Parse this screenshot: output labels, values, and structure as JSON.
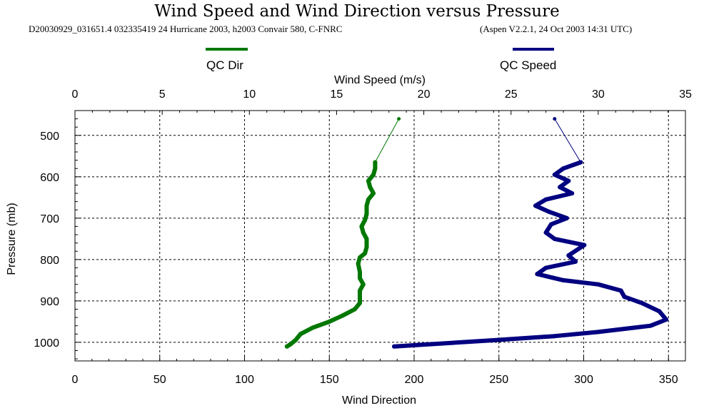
{
  "title": "Wind Speed and Wind Direction versus Pressure",
  "subtitle_left": "D20030929_031651.4 032335419 24 Hurricane 2003, h2003 Convair 580, C-FNRC",
  "subtitle_right": "(Aspen V2.2.1, 24 Oct 2003  14:31 UTC)",
  "colors": {
    "dir": "#007800",
    "speed": "#000080",
    "grid": "#000000"
  },
  "chart_data": {
    "type": "line",
    "title": "Wind Speed and Wind Direction versus Pressure",
    "ylabel": "Pressure (mb)",
    "ylim": [
      440,
      1045
    ],
    "yticks": [
      500,
      600,
      700,
      800,
      900,
      1000
    ],
    "x_top_label": "Wind Speed (m/s)",
    "x_top_lim": [
      0,
      35
    ],
    "x_top_ticks": [
      0,
      5,
      10,
      15,
      20,
      25,
      30,
      35
    ],
    "x_bottom_label": "Wind Direction",
    "x_bottom_lim": [
      0,
      360
    ],
    "x_bottom_ticks": [
      0,
      50,
      100,
      150,
      200,
      250,
      300,
      350
    ],
    "legend": [
      {
        "label": "QC Dir",
        "color": "#007800"
      },
      {
        "label": "QC Speed",
        "color": "#000080"
      }
    ],
    "series": [
      {
        "name": "QC Dir",
        "axis": "bottom",
        "points": [
          [
            191,
            460
          ],
          [
            177,
            565
          ],
          [
            177,
            580
          ],
          [
            176,
            595
          ],
          [
            173,
            610
          ],
          [
            174,
            625
          ],
          [
            176,
            640
          ],
          [
            173,
            655
          ],
          [
            172,
            670
          ],
          [
            172,
            690
          ],
          [
            171,
            705
          ],
          [
            169,
            720
          ],
          [
            170,
            735
          ],
          [
            172,
            750
          ],
          [
            172,
            770
          ],
          [
            171,
            785
          ],
          [
            168,
            795
          ],
          [
            167,
            810
          ],
          [
            168,
            830
          ],
          [
            168,
            845
          ],
          [
            170,
            860
          ],
          [
            168,
            875
          ],
          [
            168,
            890
          ],
          [
            168,
            905
          ],
          [
            165,
            920
          ],
          [
            158,
            935
          ],
          [
            150,
            950
          ],
          [
            140,
            965
          ],
          [
            133,
            980
          ],
          [
            130,
            995
          ],
          [
            127,
            1005
          ],
          [
            125,
            1010
          ]
        ]
      },
      {
        "name": "QC Speed",
        "axis": "top",
        "points": [
          [
            27.5,
            460
          ],
          [
            29.0,
            565
          ],
          [
            28.0,
            580
          ],
          [
            27.5,
            595
          ],
          [
            28.3,
            610
          ],
          [
            27.8,
            625
          ],
          [
            28.5,
            640
          ],
          [
            27.0,
            655
          ],
          [
            26.4,
            670
          ],
          [
            27.2,
            685
          ],
          [
            28.2,
            700
          ],
          [
            27.3,
            715
          ],
          [
            27.0,
            735
          ],
          [
            27.5,
            750
          ],
          [
            29.2,
            765
          ],
          [
            28.3,
            790
          ],
          [
            28.7,
            805
          ],
          [
            27.0,
            820
          ],
          [
            26.5,
            835
          ],
          [
            28.0,
            850
          ],
          [
            30.0,
            860
          ],
          [
            31.3,
            875
          ],
          [
            31.5,
            890
          ],
          [
            32.5,
            905
          ],
          [
            33.5,
            925
          ],
          [
            33.9,
            945
          ],
          [
            33.0,
            960
          ],
          [
            30.0,
            975
          ],
          [
            27.5,
            985
          ],
          [
            24.0,
            995
          ],
          [
            18.3,
            1010
          ]
        ]
      }
    ]
  }
}
